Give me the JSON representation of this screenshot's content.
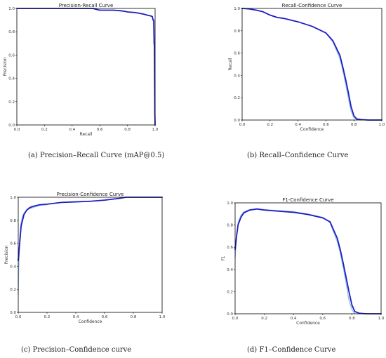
{
  "chart_data": [
    {
      "id": "pr",
      "type": "line",
      "title": "Precision-Recall Curve",
      "caption": "(a) Precision–Recall Curve (mAP@0.5)",
      "xlabel": "Recall",
      "ylabel": "Precision",
      "xlim": [
        0,
        1
      ],
      "ylim": [
        0,
        1
      ],
      "xticks": [
        "0.0",
        "0.2",
        "0.4",
        "0.6",
        "0.8",
        "1.0"
      ],
      "yticks": [
        "0.0",
        "0.2",
        "0.4",
        "0.6",
        "0.8",
        "1.0"
      ],
      "grid": false,
      "series": [
        {
          "color": "#1f1fc0",
          "x": [
            0,
            0.3,
            0.55,
            0.58,
            0.6,
            0.7,
            0.75,
            0.78,
            0.8,
            0.85,
            0.88,
            0.9,
            0.92,
            0.95,
            0.97,
            0.98,
            0.985,
            0.99,
            0.993,
            0.995,
            0.998,
            1.0
          ],
          "y": [
            1.0,
            1.0,
            1.0,
            0.99,
            0.985,
            0.985,
            0.98,
            0.975,
            0.97,
            0.965,
            0.96,
            0.955,
            0.95,
            0.94,
            0.935,
            0.93,
            0.9,
            0.9,
            0.7,
            0.68,
            0.1,
            0.0
          ]
        }
      ]
    },
    {
      "id": "rc",
      "type": "line",
      "title": "Recall-Confidence Curve",
      "caption": "(b) Recall–Confidence Curve",
      "xlabel": "Confidence",
      "ylabel": "Recall",
      "xlim": [
        0,
        1
      ],
      "ylim": [
        0,
        1
      ],
      "xticks": [
        "0.0",
        "0.2",
        "0.4",
        "0.6",
        "0.8",
        "1.0"
      ],
      "yticks": [
        "0.0",
        "0.2",
        "0.4",
        "0.6",
        "0.8",
        "1.0"
      ],
      "grid": false,
      "series": [
        {
          "color": "#8ab8e8",
          "x": [
            0,
            0.05,
            0.1,
            0.15,
            0.2,
            0.25,
            0.3,
            0.4,
            0.5,
            0.6,
            0.65,
            0.7,
            0.72,
            0.74,
            0.76,
            0.78,
            0.8,
            0.82,
            0.85
          ],
          "y": [
            1.0,
            0.995,
            0.985,
            0.97,
            0.94,
            0.92,
            0.91,
            0.88,
            0.84,
            0.78,
            0.7,
            0.55,
            0.45,
            0.33,
            0.2,
            0.08,
            0.02,
            0.005,
            0.0
          ]
        },
        {
          "color": "#1f1fc0",
          "x": [
            0,
            0.05,
            0.1,
            0.15,
            0.2,
            0.25,
            0.3,
            0.4,
            0.5,
            0.6,
            0.65,
            0.7,
            0.72,
            0.74,
            0.76,
            0.78,
            0.8,
            0.82,
            0.85,
            0.9,
            1.0
          ],
          "y": [
            1.0,
            0.995,
            0.985,
            0.97,
            0.94,
            0.92,
            0.91,
            0.88,
            0.84,
            0.78,
            0.71,
            0.58,
            0.48,
            0.37,
            0.25,
            0.12,
            0.04,
            0.01,
            0.005,
            0.0,
            0.0
          ]
        }
      ]
    },
    {
      "id": "pc",
      "type": "line",
      "title": "Precision-Confidence Curve",
      "caption": "(c) Precision–Confidence curve",
      "xlabel": "Confidence",
      "ylabel": "Precision",
      "xlim": [
        0,
        1
      ],
      "ylim": [
        0,
        1
      ],
      "xticks": [
        "0.0",
        "0.2",
        "0.4",
        "0.6",
        "0.8",
        "1.0"
      ],
      "yticks": [
        "0.0",
        "0.2",
        "0.4",
        "0.6",
        "0.8",
        "1.0"
      ],
      "grid": false,
      "series": [
        {
          "color": "#8ab8e8",
          "x": [
            0,
            0.005,
            0.01,
            0.02,
            0.03,
            0.05,
            0.08,
            0.1,
            0.15,
            0.2
          ],
          "y": [
            0.15,
            0.45,
            0.65,
            0.78,
            0.84,
            0.88,
            0.9,
            0.91,
            0.93,
            0.935
          ]
        },
        {
          "color": "#1f1fc0",
          "x": [
            0,
            0.01,
            0.02,
            0.04,
            0.06,
            0.08,
            0.1,
            0.15,
            0.2,
            0.3,
            0.4,
            0.5,
            0.6,
            0.7,
            0.75,
            0.8,
            1.0
          ],
          "y": [
            0.45,
            0.6,
            0.75,
            0.85,
            0.89,
            0.91,
            0.92,
            0.935,
            0.94,
            0.955,
            0.96,
            0.965,
            0.975,
            0.99,
            1.0,
            1.0,
            1.0
          ]
        }
      ]
    },
    {
      "id": "f1",
      "type": "line",
      "title": "F1-Confidence Curve",
      "caption": "(d) F1–Confidence Curve",
      "xlabel": "Confidence",
      "ylabel": "F1",
      "xlim": [
        0,
        1
      ],
      "ylim": [
        0,
        1
      ],
      "xticks": [
        "0.0",
        "0.2",
        "0.4",
        "0.6",
        "0.8",
        "1.0"
      ],
      "yticks": [
        "0.0",
        "0.2",
        "0.4",
        "0.6",
        "0.8",
        "1.0"
      ],
      "grid": false,
      "series": [
        {
          "color": "#8ab8e8",
          "x": [
            0,
            0.01,
            0.02,
            0.04,
            0.06,
            0.1,
            0.15,
            0.2,
            0.3,
            0.4,
            0.5,
            0.6,
            0.65,
            0.7,
            0.72,
            0.74,
            0.76,
            0.78,
            0.8,
            0.82
          ],
          "y": [
            0.5,
            0.7,
            0.82,
            0.89,
            0.92,
            0.94,
            0.945,
            0.94,
            0.93,
            0.92,
            0.9,
            0.87,
            0.82,
            0.65,
            0.55,
            0.42,
            0.28,
            0.12,
            0.04,
            0.0
          ]
        },
        {
          "color": "#1f1fc0",
          "x": [
            0,
            0.01,
            0.02,
            0.04,
            0.06,
            0.1,
            0.15,
            0.2,
            0.3,
            0.4,
            0.5,
            0.6,
            0.65,
            0.7,
            0.72,
            0.74,
            0.76,
            0.78,
            0.8,
            0.82,
            0.85,
            0.9,
            1.0
          ],
          "y": [
            0.58,
            0.7,
            0.8,
            0.87,
            0.91,
            0.935,
            0.945,
            0.935,
            0.925,
            0.915,
            0.895,
            0.865,
            0.83,
            0.68,
            0.58,
            0.46,
            0.33,
            0.2,
            0.08,
            0.02,
            0.005,
            0.0,
            0.0
          ]
        }
      ]
    }
  ]
}
